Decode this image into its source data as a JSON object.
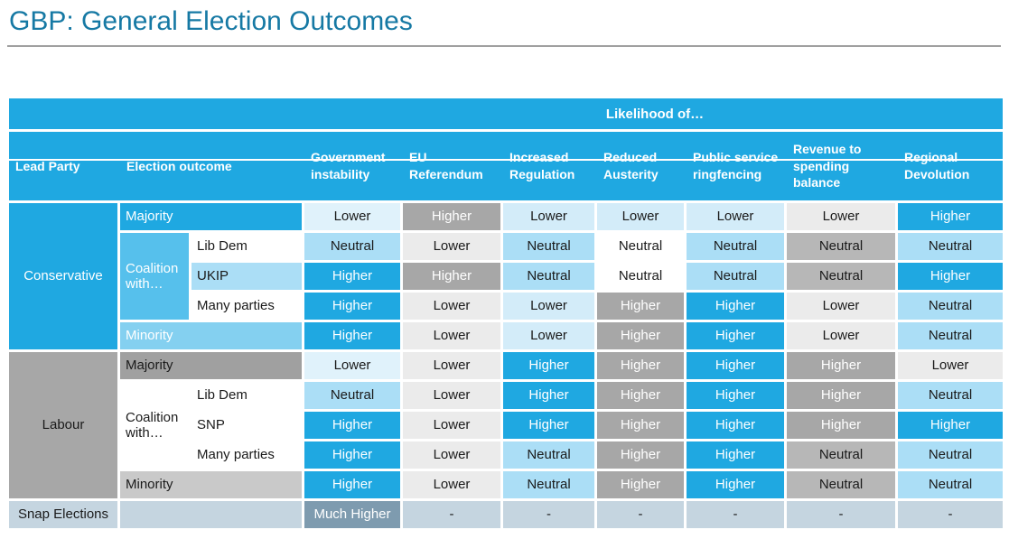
{
  "page": {
    "title": "GBP: General Election Outcomes"
  },
  "colors": {
    "title_blue": "#1679A4",
    "rule_gray": "#A0A0A0",
    "header_blue": "#1FA8E1",
    "strong_blue": "#1FA8E1",
    "mid_blue": "#56C0EC",
    "soft_blue": "#84D0F0",
    "light_blue": "#ABDEF6",
    "pale_blue": "#D3ECF9",
    "palest_blue": "#E0F2FB",
    "light_gray": "#EBEBEB",
    "neutral_gray": "#B7B7B7",
    "mid_gray": "#A7A7A7",
    "soft_gray": "#C9C9C9",
    "snap_light": "#C5D5E0",
    "snap_dark": "#7E9BAF"
  },
  "table": {
    "band": "Likelihood of…",
    "columns": [
      "Lead Party",
      "Election outcome",
      "Government instability",
      "EU Referendum",
      "Increased Regulation",
      "Reduced Austerity",
      "Public service ringfencing",
      "Revenue to spending balance",
      "Regional Devolution"
    ],
    "leads": [
      {
        "label": "Conservative",
        "tone": "strong-blue"
      },
      {
        "label": "Labour",
        "tone": "labour-gray"
      },
      {
        "label": "Snap Elections",
        "tone": "snap-light"
      }
    ],
    "rows": [
      {
        "outcome": {
          "label": "Majority",
          "tone": "strong-blue"
        },
        "values": [
          {
            "label": "Lower",
            "tone": "palest-blue"
          },
          {
            "label": "Higher",
            "tone": "mid-gray"
          },
          {
            "label": "Lower",
            "tone": "pale-blue"
          },
          {
            "label": "Lower",
            "tone": "pale-blue"
          },
          {
            "label": "Lower",
            "tone": "pale-blue"
          },
          {
            "label": "Lower",
            "tone": "light-gray"
          },
          {
            "label": "Higher",
            "tone": "strong-blue"
          }
        ]
      },
      {
        "outcome": {
          "label": "Coalition with…",
          "tone": "mid-blue"
        },
        "partner": {
          "label": "Lib Dem",
          "tone": "white"
        },
        "values": [
          {
            "label": "Neutral",
            "tone": "light-blue"
          },
          {
            "label": "Lower",
            "tone": "light-gray"
          },
          {
            "label": "Neutral",
            "tone": "light-blue"
          },
          {
            "label": "Neutral",
            "tone": "white"
          },
          {
            "label": "Neutral",
            "tone": "light-blue"
          },
          {
            "label": "Neutral",
            "tone": "neutral-gray"
          },
          {
            "label": "Neutral",
            "tone": "light-blue"
          }
        ]
      },
      {
        "partner": {
          "label": "UKIP",
          "tone": "light-blue"
        },
        "values": [
          {
            "label": "Higher",
            "tone": "strong-blue"
          },
          {
            "label": "Higher",
            "tone": "mid-gray"
          },
          {
            "label": "Neutral",
            "tone": "light-blue"
          },
          {
            "label": "Neutral",
            "tone": "white"
          },
          {
            "label": "Neutral",
            "tone": "light-blue"
          },
          {
            "label": "Neutral",
            "tone": "neutral-gray"
          },
          {
            "label": "Higher",
            "tone": "strong-blue"
          }
        ]
      },
      {
        "partner": {
          "label": "Many parties",
          "tone": "white"
        },
        "values": [
          {
            "label": "Higher",
            "tone": "strong-blue"
          },
          {
            "label": "Lower",
            "tone": "light-gray"
          },
          {
            "label": "Lower",
            "tone": "pale-blue"
          },
          {
            "label": "Higher",
            "tone": "mid-gray"
          },
          {
            "label": "Higher",
            "tone": "strong-blue"
          },
          {
            "label": "Lower",
            "tone": "light-gray"
          },
          {
            "label": "Neutral",
            "tone": "light-blue"
          }
        ]
      },
      {
        "outcome": {
          "label": "Minority",
          "tone": "soft-blue"
        },
        "values": [
          {
            "label": "Higher",
            "tone": "strong-blue"
          },
          {
            "label": "Lower",
            "tone": "light-gray"
          },
          {
            "label": "Lower",
            "tone": "pale-blue"
          },
          {
            "label": "Higher",
            "tone": "mid-gray"
          },
          {
            "label": "Higher",
            "tone": "strong-blue"
          },
          {
            "label": "Lower",
            "tone": "light-gray"
          },
          {
            "label": "Neutral",
            "tone": "light-blue"
          }
        ]
      },
      {
        "outcome": {
          "label": "Majority",
          "tone": "majority-gray"
        },
        "values": [
          {
            "label": "Lower",
            "tone": "palest-blue"
          },
          {
            "label": "Lower",
            "tone": "light-gray"
          },
          {
            "label": "Higher",
            "tone": "strong-blue"
          },
          {
            "label": "Higher",
            "tone": "mid-gray"
          },
          {
            "label": "Higher",
            "tone": "strong-blue"
          },
          {
            "label": "Higher",
            "tone": "mid-gray"
          },
          {
            "label": "Lower",
            "tone": "light-gray"
          }
        ]
      },
      {
        "outcome": {
          "label": "Coalition with…",
          "tone": "white"
        },
        "partner": {
          "label": "Lib Dem",
          "tone": "white"
        },
        "values": [
          {
            "label": "Neutral",
            "tone": "light-blue"
          },
          {
            "label": "Lower",
            "tone": "light-gray"
          },
          {
            "label": "Higher",
            "tone": "strong-blue"
          },
          {
            "label": "Higher",
            "tone": "mid-gray"
          },
          {
            "label": "Higher",
            "tone": "strong-blue"
          },
          {
            "label": "Higher",
            "tone": "mid-gray"
          },
          {
            "label": "Neutral",
            "tone": "light-blue"
          }
        ]
      },
      {
        "partner": {
          "label": "SNP",
          "tone": "white"
        },
        "values": [
          {
            "label": "Higher",
            "tone": "strong-blue"
          },
          {
            "label": "Lower",
            "tone": "light-gray"
          },
          {
            "label": "Higher",
            "tone": "strong-blue"
          },
          {
            "label": "Higher",
            "tone": "mid-gray"
          },
          {
            "label": "Higher",
            "tone": "strong-blue"
          },
          {
            "label": "Higher",
            "tone": "mid-gray"
          },
          {
            "label": "Higher",
            "tone": "strong-blue"
          }
        ]
      },
      {
        "partner": {
          "label": "Many parties",
          "tone": "white"
        },
        "values": [
          {
            "label": "Higher",
            "tone": "strong-blue"
          },
          {
            "label": "Lower",
            "tone": "light-gray"
          },
          {
            "label": "Neutral",
            "tone": "light-blue"
          },
          {
            "label": "Higher",
            "tone": "mid-gray"
          },
          {
            "label": "Higher",
            "tone": "strong-blue"
          },
          {
            "label": "Neutral",
            "tone": "neutral-gray"
          },
          {
            "label": "Neutral",
            "tone": "light-blue"
          }
        ]
      },
      {
        "outcome": {
          "label": "Minority",
          "tone": "soft-gray"
        },
        "values": [
          {
            "label": "Higher",
            "tone": "strong-blue"
          },
          {
            "label": "Lower",
            "tone": "light-gray"
          },
          {
            "label": "Neutral",
            "tone": "light-blue"
          },
          {
            "label": "Higher",
            "tone": "mid-gray"
          },
          {
            "label": "Higher",
            "tone": "strong-blue"
          },
          {
            "label": "Neutral",
            "tone": "neutral-gray"
          },
          {
            "label": "Neutral",
            "tone": "light-blue"
          }
        ]
      },
      {
        "outcome": {
          "label": "",
          "tone": "snap-light"
        },
        "values": [
          {
            "label": "Much Higher",
            "tone": "snap-dark"
          },
          {
            "label": "-",
            "tone": "snap-light"
          },
          {
            "label": "-",
            "tone": "snap-light"
          },
          {
            "label": "-",
            "tone": "snap-light"
          },
          {
            "label": "-",
            "tone": "snap-light"
          },
          {
            "label": "-",
            "tone": "snap-light"
          },
          {
            "label": "-",
            "tone": "snap-light"
          }
        ]
      }
    ]
  }
}
